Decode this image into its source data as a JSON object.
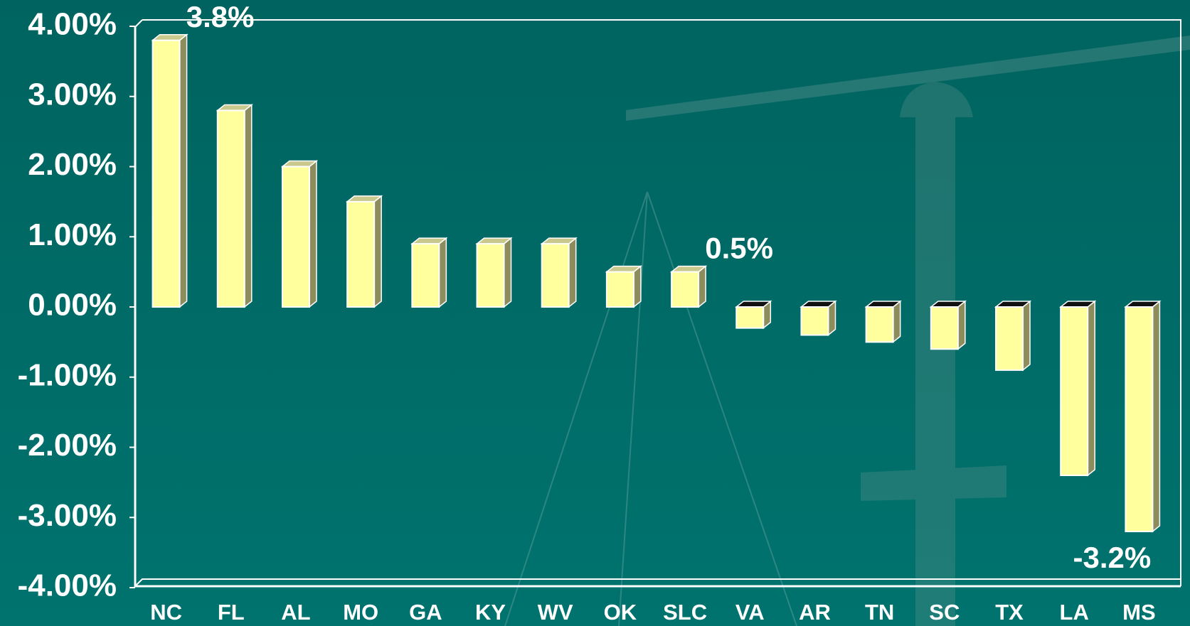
{
  "chart_data": {
    "type": "bar",
    "categories": [
      "NC",
      "FL",
      "AL",
      "MO",
      "GA",
      "KY",
      "WV",
      "OK",
      "SLC",
      "VA",
      "AR",
      "TN",
      "SC",
      "TX",
      "LA",
      "MS"
    ],
    "values": [
      3.8,
      2.8,
      2.0,
      1.5,
      0.9,
      0.9,
      0.9,
      0.5,
      0.5,
      -0.3,
      -0.4,
      -0.5,
      -0.6,
      -0.9,
      -2.4,
      -3.2
    ],
    "value_labels": [
      "3.8%",
      null,
      null,
      null,
      null,
      null,
      null,
      null,
      "0.5%",
      null,
      null,
      null,
      null,
      null,
      null,
      "-3.2%"
    ],
    "color": "#ffff9e",
    "ylim": [
      -4,
      4
    ],
    "yticks": [
      {
        "value": 4,
        "label": "4.00%"
      },
      {
        "value": 3,
        "label": "3.00%"
      },
      {
        "value": 2,
        "label": "2.00%"
      },
      {
        "value": 1,
        "label": "1.00%"
      },
      {
        "value": 0,
        "label": "0.00%"
      },
      {
        "value": -1,
        "label": "-1.00%"
      },
      {
        "value": -2,
        "label": "-2.00%"
      },
      {
        "value": -3,
        "label": "-3.00%"
      },
      {
        "value": -4,
        "label": "-4.00%"
      }
    ],
    "grid": false
  }
}
